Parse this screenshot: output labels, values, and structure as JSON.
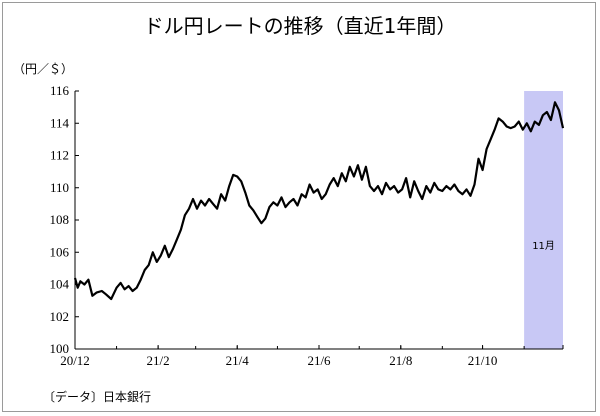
{
  "chart_data": {
    "type": "line",
    "title": "ドル円レートの推移（直近1年間）",
    "ylabel": "（円／＄）",
    "xlabel": "",
    "source": "〔データ〕日本銀行",
    "ylim": [
      100,
      116
    ],
    "yticks": [
      100,
      102,
      104,
      106,
      108,
      110,
      112,
      114,
      116
    ],
    "xlim": [
      "2020-12-01",
      "2021-11-30"
    ],
    "xticks": [
      {
        "label": "20/12",
        "date": "2020-12-01"
      },
      {
        "label": "21/2",
        "date": "2021-02-01"
      },
      {
        "label": "21/4",
        "date": "2021-04-01"
      },
      {
        "label": "21/6",
        "date": "2021-06-01"
      },
      {
        "label": "21/8",
        "date": "2021-08-01"
      },
      {
        "label": "21/10",
        "date": "2021-10-01"
      }
    ],
    "grid": false,
    "highlight": {
      "label": "11月",
      "start": "2021-11-01",
      "end": "2021-11-30",
      "color": "#c8c8f5"
    },
    "series": [
      {
        "color": "#000000",
        "x": [
          "2020-12-01",
          "2020-12-03",
          "2020-12-05",
          "2020-12-08",
          "2020-12-11",
          "2020-12-14",
          "2020-12-17",
          "2020-12-21",
          "2020-12-24",
          "2020-12-28",
          "2021-01-01",
          "2021-01-04",
          "2021-01-07",
          "2021-01-10",
          "2021-01-13",
          "2021-01-16",
          "2021-01-19",
          "2021-01-22",
          "2021-01-25",
          "2021-01-28",
          "2021-01-31",
          "2021-02-03",
          "2021-02-06",
          "2021-02-09",
          "2021-02-12",
          "2021-02-15",
          "2021-02-18",
          "2021-02-21",
          "2021-02-24",
          "2021-02-27",
          "2021-03-02",
          "2021-03-05",
          "2021-03-08",
          "2021-03-11",
          "2021-03-14",
          "2021-03-17",
          "2021-03-20",
          "2021-03-23",
          "2021-03-26",
          "2021-03-29",
          "2021-04-01",
          "2021-04-04",
          "2021-04-07",
          "2021-04-10",
          "2021-04-13",
          "2021-04-16",
          "2021-04-19",
          "2021-04-22",
          "2021-04-25",
          "2021-04-28",
          "2021-05-01",
          "2021-05-04",
          "2021-05-07",
          "2021-05-10",
          "2021-05-13",
          "2021-05-16",
          "2021-05-19",
          "2021-05-22",
          "2021-05-25",
          "2021-05-28",
          "2021-05-31",
          "2021-06-03",
          "2021-06-06",
          "2021-06-09",
          "2021-06-12",
          "2021-06-15",
          "2021-06-18",
          "2021-06-21",
          "2021-06-24",
          "2021-06-27",
          "2021-06-30",
          "2021-07-03",
          "2021-07-06",
          "2021-07-09",
          "2021-07-12",
          "2021-07-15",
          "2021-07-18",
          "2021-07-21",
          "2021-07-24",
          "2021-07-27",
          "2021-07-30",
          "2021-08-02",
          "2021-08-05",
          "2021-08-08",
          "2021-08-11",
          "2021-08-14",
          "2021-08-17",
          "2021-08-20",
          "2021-08-23",
          "2021-08-26",
          "2021-08-29",
          "2021-09-01",
          "2021-09-04",
          "2021-09-07",
          "2021-09-10",
          "2021-09-13",
          "2021-09-16",
          "2021-09-19",
          "2021-09-22",
          "2021-09-25",
          "2021-09-28",
          "2021-10-01",
          "2021-10-04",
          "2021-10-07",
          "2021-10-10",
          "2021-10-13",
          "2021-10-16",
          "2021-10-19",
          "2021-10-22",
          "2021-10-25",
          "2021-10-28",
          "2021-10-31",
          "2021-11-03",
          "2021-11-06",
          "2021-11-09",
          "2021-11-12",
          "2021-11-15",
          "2021-11-18",
          "2021-11-21",
          "2021-11-24",
          "2021-11-27",
          "2021-11-30"
        ],
        "values": [
          104.4,
          103.8,
          104.2,
          104.0,
          104.3,
          103.3,
          103.5,
          103.6,
          103.4,
          103.1,
          103.8,
          104.1,
          103.7,
          103.9,
          103.6,
          103.8,
          104.3,
          104.9,
          105.2,
          106.0,
          105.4,
          105.8,
          106.4,
          105.7,
          106.2,
          106.8,
          107.4,
          108.3,
          108.7,
          109.3,
          108.7,
          109.2,
          108.9,
          109.3,
          109.0,
          108.7,
          109.6,
          109.2,
          110.1,
          110.8,
          110.7,
          110.4,
          109.7,
          108.9,
          108.6,
          108.2,
          107.8,
          108.1,
          108.8,
          109.1,
          108.9,
          109.4,
          108.8,
          109.1,
          109.3,
          108.9,
          109.6,
          109.4,
          110.2,
          109.7,
          109.9,
          109.3,
          109.6,
          110.2,
          110.6,
          110.1,
          110.9,
          110.4,
          111.3,
          110.7,
          111.4,
          110.5,
          111.3,
          110.1,
          109.8,
          110.1,
          109.6,
          110.3,
          109.9,
          110.1,
          109.7,
          109.9,
          110.6,
          109.4,
          110.4,
          109.8,
          109.3,
          110.1,
          109.7,
          110.3,
          109.9,
          109.8,
          110.1,
          109.9,
          110.2,
          109.8,
          109.6,
          109.9,
          109.5,
          110.2,
          111.8,
          111.1,
          112.4,
          113.0,
          113.6,
          114.3,
          114.1,
          113.8,
          113.7,
          113.8,
          114.1,
          113.6,
          114.0,
          113.5,
          114.1,
          113.9,
          114.5,
          114.7,
          114.2,
          115.3,
          114.8,
          113.7
        ]
      }
    ]
  }
}
